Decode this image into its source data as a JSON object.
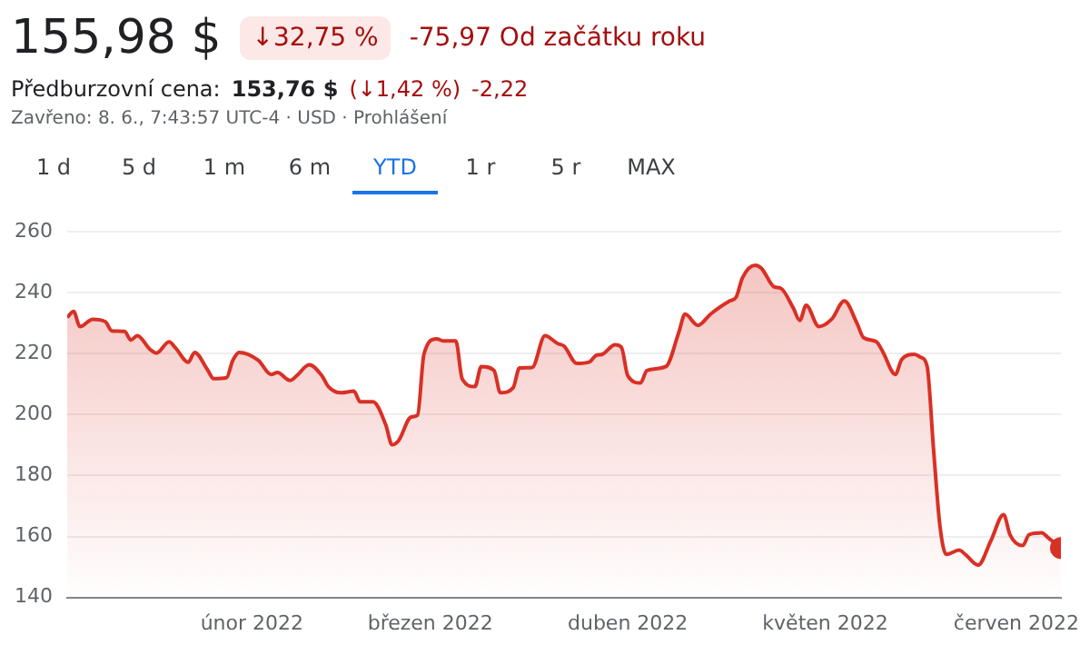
{
  "chart_data": {
    "type": "area",
    "title": "155,98 $",
    "annotations": [
      "↓32,75 %",
      "-75,97 Od začátku roku",
      "Předburzovní cena:",
      "153,76 $",
      "(↓1,42 %)",
      "-2,22",
      "Zavřeno: 8. 6., 7:43:57 UTC-4 · USD · Prohlášení",
      "1 d",
      "5 d",
      "1 m",
      "6 m",
      "YTD",
      "1 r",
      "5 r",
      "MAX"
    ],
    "x": [
      "2022-01-03",
      "2022-01-04",
      "2022-01-05",
      "2022-01-07",
      "2022-01-09",
      "2022-01-10",
      "2022-01-12",
      "2022-01-13",
      "2022-01-14",
      "2022-01-16",
      "2022-01-17",
      "2022-01-19",
      "2022-01-20",
      "2022-01-22",
      "2022-01-23",
      "2022-01-25",
      "2022-01-26",
      "2022-01-28",
      "2022-01-29",
      "2022-01-30",
      "2022-02-02",
      "2022-02-04",
      "2022-02-05",
      "2022-02-07",
      "2022-02-08",
      "2022-02-10",
      "2022-02-12",
      "2022-02-13",
      "2022-02-15",
      "2022-02-17",
      "2022-02-18",
      "2022-02-20",
      "2022-02-22",
      "2022-02-23",
      "2022-02-24",
      "2022-02-26",
      "2022-02-27",
      "2022-02-28",
      "2022-03-02",
      "2022-03-03",
      "2022-03-05",
      "2022-03-06",
      "2022-03-08",
      "2022-03-09",
      "2022-03-11",
      "2022-03-12",
      "2022-03-14",
      "2022-03-15",
      "2022-03-17",
      "2022-03-19",
      "2022-03-21",
      "2022-03-22",
      "2022-03-24",
      "2022-03-26",
      "2022-03-27",
      "2022-03-28",
      "2022-03-30",
      "2022-03-31",
      "2022-04-01",
      "2022-04-03",
      "2022-04-04",
      "2022-04-07",
      "2022-04-09",
      "2022-04-10",
      "2022-04-12",
      "2022-04-14",
      "2022-04-17",
      "2022-04-18",
      "2022-04-19",
      "2022-04-21",
      "2022-04-22",
      "2022-04-24",
      "2022-04-25",
      "2022-04-27",
      "2022-04-28",
      "2022-04-29",
      "2022-05-01",
      "2022-05-03",
      "2022-05-05",
      "2022-05-07",
      "2022-05-08",
      "2022-05-10",
      "2022-05-11",
      "2022-05-13",
      "2022-05-14",
      "2022-05-16",
      "2022-05-17",
      "2022-05-18",
      "2022-05-19",
      "2022-05-20",
      "2022-05-21",
      "2022-05-23",
      "2022-05-24",
      "2022-05-26",
      "2022-05-28",
      "2022-05-30",
      "2022-05-31",
      "2022-06-02",
      "2022-06-03",
      "2022-06-05",
      "2022-06-06",
      "2022-06-08"
    ],
    "series": [
      {
        "color": "#d93025",
        "values": [
          231.9,
          233.9,
          228.9,
          231.3,
          230.5,
          227.5,
          227.3,
          224.5,
          225.9,
          221.4,
          220.2,
          223.9,
          221.9,
          217.2,
          220.4,
          214.8,
          211.8,
          212.1,
          217.8,
          220.4,
          217.8,
          213.2,
          213.8,
          211.2,
          212.7,
          216.4,
          212.7,
          209.2,
          207.2,
          207.7,
          204.2,
          204.2,
          196.7,
          190.1,
          191.4,
          199.2,
          199.8,
          219.8,
          224.9,
          224.2,
          224.2,
          211.8,
          209.2,
          215.8,
          214.5,
          207.2,
          208.8,
          215.3,
          215.5,
          225.9,
          223.3,
          222.5,
          216.8,
          217.3,
          219.4,
          219.8,
          222.9,
          222.1,
          212.8,
          210.4,
          214.5,
          215.8,
          226.9,
          233.0,
          229.3,
          233.0,
          237.3,
          238.5,
          244.9,
          249.0,
          248.0,
          241.9,
          241.5,
          234.9,
          230.9,
          235.9,
          228.9,
          231.3,
          237.3,
          229.9,
          225.3,
          224.0,
          220.8,
          213.2,
          218.1,
          219.8,
          218.8,
          215.8,
          188.7,
          163.6,
          154.1,
          155.5,
          154.1,
          150.6,
          158.6,
          167.2,
          160.6,
          157.0,
          160.6,
          161.2,
          159.6,
          156.2
        ]
      }
    ],
    "xlim": [
      "2022-01-03",
      "2022-06-08"
    ],
    "xticks": [
      {
        "value": "2022-02-01",
        "label": "únor 2022"
      },
      {
        "value": "2022-03-01",
        "label": "březen 2022"
      },
      {
        "value": "2022-04-01",
        "label": "duben 2022"
      },
      {
        "value": "2022-05-02",
        "label": "květen 2022"
      },
      {
        "value": "2022-06-01",
        "label": "červen 2022"
      }
    ],
    "ylim": [
      140,
      260
    ],
    "yticks": [
      140,
      160,
      180,
      200,
      220,
      240,
      260
    ],
    "grid": "y",
    "legend": false,
    "marker": "none",
    "line_style": "solid"
  }
}
